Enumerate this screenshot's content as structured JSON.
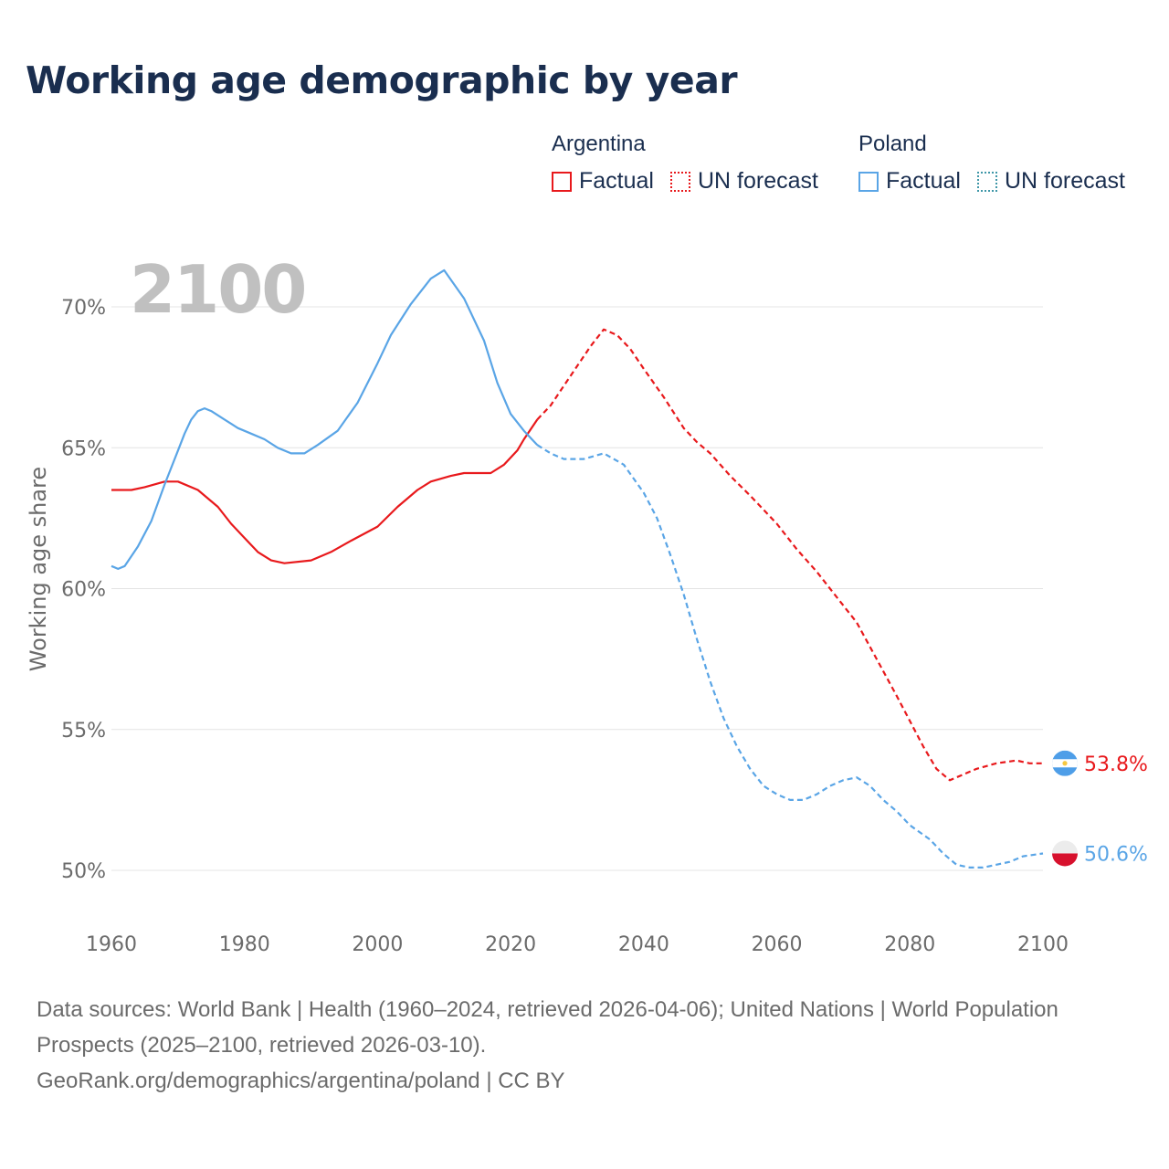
{
  "header": {
    "title": "Working age demographic by year"
  },
  "legend": {
    "groups": [
      {
        "name": "Argentina",
        "factual_label": "Factual",
        "forecast_label": "UN forecast",
        "color": "#e8191c"
      },
      {
        "name": "Poland",
        "factual_label": "Factual",
        "forecast_label": "UN forecast",
        "color": "#5aa5e6"
      }
    ]
  },
  "year_watermark": "2100",
  "footer": {
    "sources": "Data sources: World Bank | Health (1960–2024, retrieved 2026-04-06); United Nations | World Population Prospects (2025–2100, retrieved 2026-03-10).",
    "attribution": "GeoRank.org/demographics/argentina/poland | CC BY"
  },
  "chart_data": {
    "type": "line",
    "title": "Working age demographic by year",
    "xlabel": "",
    "ylabel": "Working age share",
    "xlim": [
      1960,
      2100
    ],
    "ylim": [
      49.5,
      72
    ],
    "x_ticks": [
      "1960",
      "1980",
      "2000",
      "2020",
      "2040",
      "2060",
      "2080",
      "2100"
    ],
    "y_ticks": [
      "50%",
      "55%",
      "60%",
      "65%",
      "70%"
    ],
    "y_tick_values": [
      50,
      55,
      60,
      65,
      70
    ],
    "grid": true,
    "factual_end_year": 2024,
    "series": [
      {
        "name": "Argentina",
        "color": "#e8191c",
        "end_label": "53.8%",
        "points": [
          [
            1960,
            63.5
          ],
          [
            1963,
            63.5
          ],
          [
            1965,
            63.6
          ],
          [
            1968,
            63.8
          ],
          [
            1970,
            63.8
          ],
          [
            1973,
            63.5
          ],
          [
            1976,
            62.9
          ],
          [
            1978,
            62.3
          ],
          [
            1980,
            61.8
          ],
          [
            1982,
            61.3
          ],
          [
            1984,
            61.0
          ],
          [
            1986,
            60.9
          ],
          [
            1990,
            61.0
          ],
          [
            1993,
            61.3
          ],
          [
            1996,
            61.7
          ],
          [
            2000,
            62.2
          ],
          [
            2003,
            62.9
          ],
          [
            2006,
            63.5
          ],
          [
            2008,
            63.8
          ],
          [
            2011,
            64.0
          ],
          [
            2013,
            64.1
          ],
          [
            2017,
            64.1
          ],
          [
            2019,
            64.4
          ],
          [
            2021,
            64.9
          ],
          [
            2022,
            65.3
          ],
          [
            2024,
            66.0
          ],
          [
            2026,
            66.5
          ],
          [
            2028,
            67.2
          ],
          [
            2030,
            67.9
          ],
          [
            2032,
            68.6
          ],
          [
            2034,
            69.2
          ],
          [
            2036,
            69.0
          ],
          [
            2038,
            68.5
          ],
          [
            2040,
            67.8
          ],
          [
            2043,
            66.8
          ],
          [
            2046,
            65.7
          ],
          [
            2048,
            65.2
          ],
          [
            2050,
            64.8
          ],
          [
            2053,
            64.0
          ],
          [
            2056,
            63.3
          ],
          [
            2060,
            62.3
          ],
          [
            2063,
            61.4
          ],
          [
            2066,
            60.6
          ],
          [
            2070,
            59.4
          ],
          [
            2072,
            58.8
          ],
          [
            2075,
            57.5
          ],
          [
            2078,
            56.2
          ],
          [
            2080,
            55.3
          ],
          [
            2082,
            54.4
          ],
          [
            2084,
            53.6
          ],
          [
            2086,
            53.2
          ],
          [
            2088,
            53.4
          ],
          [
            2090,
            53.6
          ],
          [
            2093,
            53.8
          ],
          [
            2096,
            53.9
          ],
          [
            2098,
            53.8
          ],
          [
            2100,
            53.8
          ]
        ]
      },
      {
        "name": "Poland",
        "color": "#5aa5e6",
        "end_label": "50.6%",
        "points": [
          [
            1960,
            60.8
          ],
          [
            1961,
            60.7
          ],
          [
            1962,
            60.8
          ],
          [
            1964,
            61.5
          ],
          [
            1966,
            62.4
          ],
          [
            1968,
            63.7
          ],
          [
            1970,
            64.9
          ],
          [
            1971,
            65.5
          ],
          [
            1972,
            66.0
          ],
          [
            1973,
            66.3
          ],
          [
            1974,
            66.4
          ],
          [
            1975,
            66.3
          ],
          [
            1977,
            66.0
          ],
          [
            1979,
            65.7
          ],
          [
            1981,
            65.5
          ],
          [
            1983,
            65.3
          ],
          [
            1985,
            65.0
          ],
          [
            1987,
            64.8
          ],
          [
            1989,
            64.8
          ],
          [
            1991,
            65.1
          ],
          [
            1994,
            65.6
          ],
          [
            1997,
            66.6
          ],
          [
            2000,
            68.0
          ],
          [
            2002,
            69.0
          ],
          [
            2005,
            70.1
          ],
          [
            2008,
            71.0
          ],
          [
            2010,
            71.3
          ],
          [
            2013,
            70.3
          ],
          [
            2016,
            68.8
          ],
          [
            2018,
            67.3
          ],
          [
            2020,
            66.2
          ],
          [
            2022,
            65.6
          ],
          [
            2024,
            65.1
          ],
          [
            2026,
            64.8
          ],
          [
            2028,
            64.6
          ],
          [
            2031,
            64.6
          ],
          [
            2034,
            64.8
          ],
          [
            2037,
            64.4
          ],
          [
            2040,
            63.4
          ],
          [
            2042,
            62.5
          ],
          [
            2044,
            61.2
          ],
          [
            2046,
            59.8
          ],
          [
            2048,
            58.2
          ],
          [
            2050,
            56.7
          ],
          [
            2052,
            55.4
          ],
          [
            2054,
            54.4
          ],
          [
            2056,
            53.6
          ],
          [
            2058,
            53.0
          ],
          [
            2060,
            52.7
          ],
          [
            2062,
            52.5
          ],
          [
            2064,
            52.5
          ],
          [
            2066,
            52.7
          ],
          [
            2068,
            53.0
          ],
          [
            2070,
            53.2
          ],
          [
            2072,
            53.3
          ],
          [
            2074,
            53.0
          ],
          [
            2076,
            52.5
          ],
          [
            2078,
            52.1
          ],
          [
            2080,
            51.6
          ],
          [
            2083,
            51.1
          ],
          [
            2085,
            50.6
          ],
          [
            2087,
            50.2
          ],
          [
            2089,
            50.1
          ],
          [
            2091,
            50.1
          ],
          [
            2093,
            50.2
          ],
          [
            2095,
            50.3
          ],
          [
            2097,
            50.5
          ],
          [
            2100,
            50.6
          ]
        ]
      }
    ]
  }
}
